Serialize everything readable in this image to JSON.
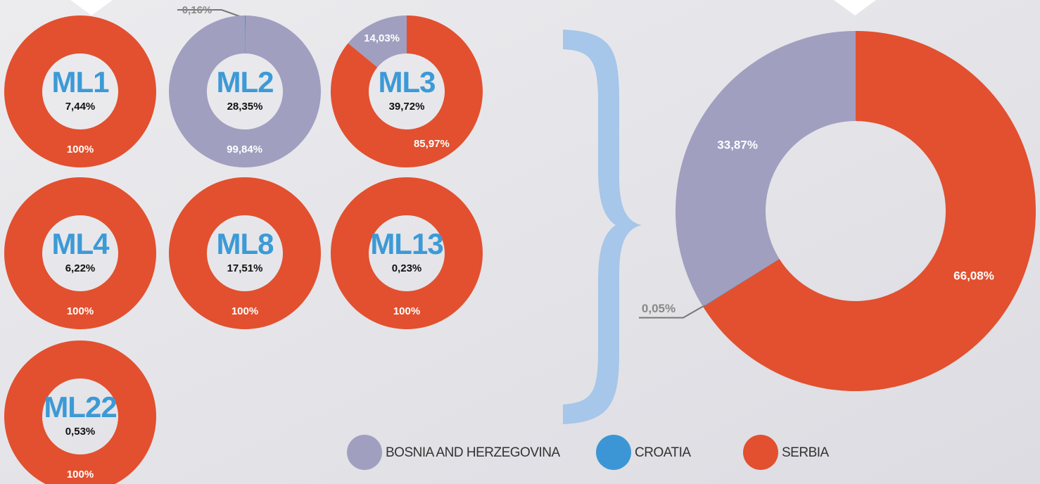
{
  "legend": {
    "names": [
      "BOSNIA AND HERZEGOVINA",
      "CROATIA",
      "SERBIA"
    ],
    "colors": [
      "#a09fc0",
      "#3c96d6",
      "#e2502f"
    ]
  },
  "chart_data": [
    {
      "type": "donut",
      "title": "ML1",
      "annotation": "7,44%",
      "categories": [
        "SERBIA"
      ],
      "values": [
        100
      ],
      "value_labels": [
        "100%"
      ]
    },
    {
      "type": "donut",
      "title": "ML2",
      "annotation": "28,35%",
      "categories": [
        "CROATIA",
        "BOSNIA AND HERZEGOVINA"
      ],
      "values": [
        0.16,
        99.84
      ],
      "value_labels": [
        "0,16%",
        "99,84%"
      ]
    },
    {
      "type": "donut",
      "title": "ML3",
      "annotation": "39,72%",
      "categories": [
        "SERBIA",
        "BOSNIA AND HERZEGOVINA"
      ],
      "values": [
        85.97,
        14.03
      ],
      "value_labels": [
        "85,97%",
        "14,03%"
      ]
    },
    {
      "type": "donut",
      "title": "ML4",
      "annotation": "6,22%",
      "categories": [
        "SERBIA"
      ],
      "values": [
        100
      ],
      "value_labels": [
        "100%"
      ]
    },
    {
      "type": "donut",
      "title": "ML8",
      "annotation": "17,51%",
      "categories": [
        "SERBIA"
      ],
      "values": [
        100
      ],
      "value_labels": [
        "100%"
      ]
    },
    {
      "type": "donut",
      "title": "ML13",
      "annotation": "0,23%",
      "categories": [
        "SERBIA"
      ],
      "values": [
        100
      ],
      "value_labels": [
        "100%"
      ]
    },
    {
      "type": "donut",
      "title": "ML22",
      "annotation": "0,53%",
      "categories": [
        "SERBIA"
      ],
      "values": [
        100
      ],
      "value_labels": [
        "100%"
      ]
    },
    {
      "type": "donut",
      "categories": [
        "SERBIA",
        "CROATIA",
        "BOSNIA AND HERZEGOVINA"
      ],
      "values": [
        66.08,
        0.05,
        33.87
      ],
      "value_labels": [
        "66,08%",
        "0,05%",
        "33,87%"
      ]
    }
  ]
}
